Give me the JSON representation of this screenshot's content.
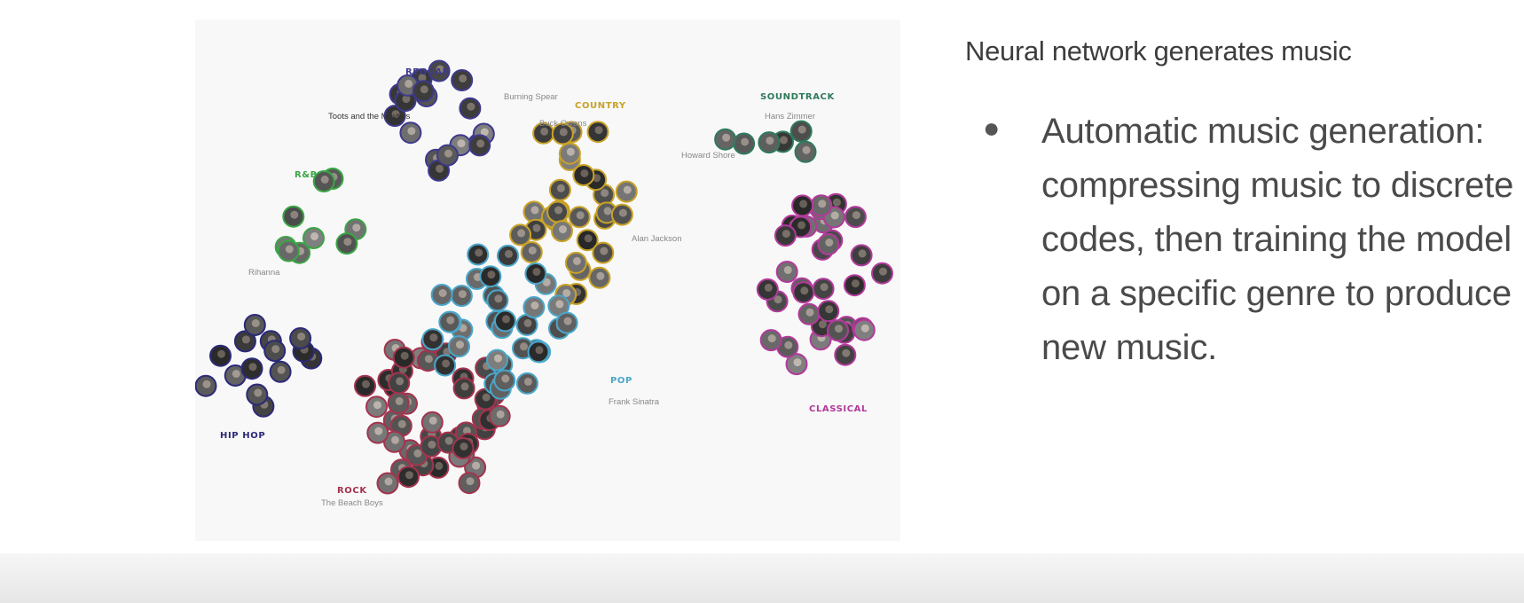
{
  "slide": {
    "title": "Neural network generates music",
    "bullet": "Automatic music generation: compressing music to discrete codes, then training the model on a specific genre to produce new music."
  },
  "figure": {
    "genres": [
      {
        "key": "reggae",
        "label": "REGGAE",
        "color": "#3f3a8c"
      },
      {
        "key": "country",
        "label": "COUNTRY",
        "color": "#c9a227"
      },
      {
        "key": "soundtrack",
        "label": "SOUNDTRACK",
        "color": "#2f7a5c"
      },
      {
        "key": "rnb",
        "label": "R&B",
        "color": "#3aa545"
      },
      {
        "key": "hiphop",
        "label": "HIP HOP",
        "color": "#2c2a78"
      },
      {
        "key": "rock",
        "label": "ROCK",
        "color": "#a3344e"
      },
      {
        "key": "pop",
        "label": "POP",
        "color": "#4aa6c9"
      },
      {
        "key": "classical",
        "label": "CLASSICAL",
        "color": "#b23a9b"
      }
    ],
    "artists": [
      {
        "key": "burning_spear",
        "label": "Burning Spear",
        "dark": false
      },
      {
        "key": "toots",
        "label": "Toots and the Maytals",
        "dark": true
      },
      {
        "key": "buck_owens",
        "label": "Buck Owens",
        "dark": false
      },
      {
        "key": "hans_zimmer",
        "label": "Hans Zimmer",
        "dark": false
      },
      {
        "key": "howard_shore",
        "label": "Howard Shore",
        "dark": false
      },
      {
        "key": "alan_jackson",
        "label": "Alan Jackson",
        "dark": false
      },
      {
        "key": "rihanna",
        "label": "Rihanna",
        "dark": false
      },
      {
        "key": "frank_sinatra",
        "label": "Frank Sinatra",
        "dark": false
      },
      {
        "key": "beach_boys",
        "label": "The Beach Boys",
        "dark": false
      }
    ]
  }
}
